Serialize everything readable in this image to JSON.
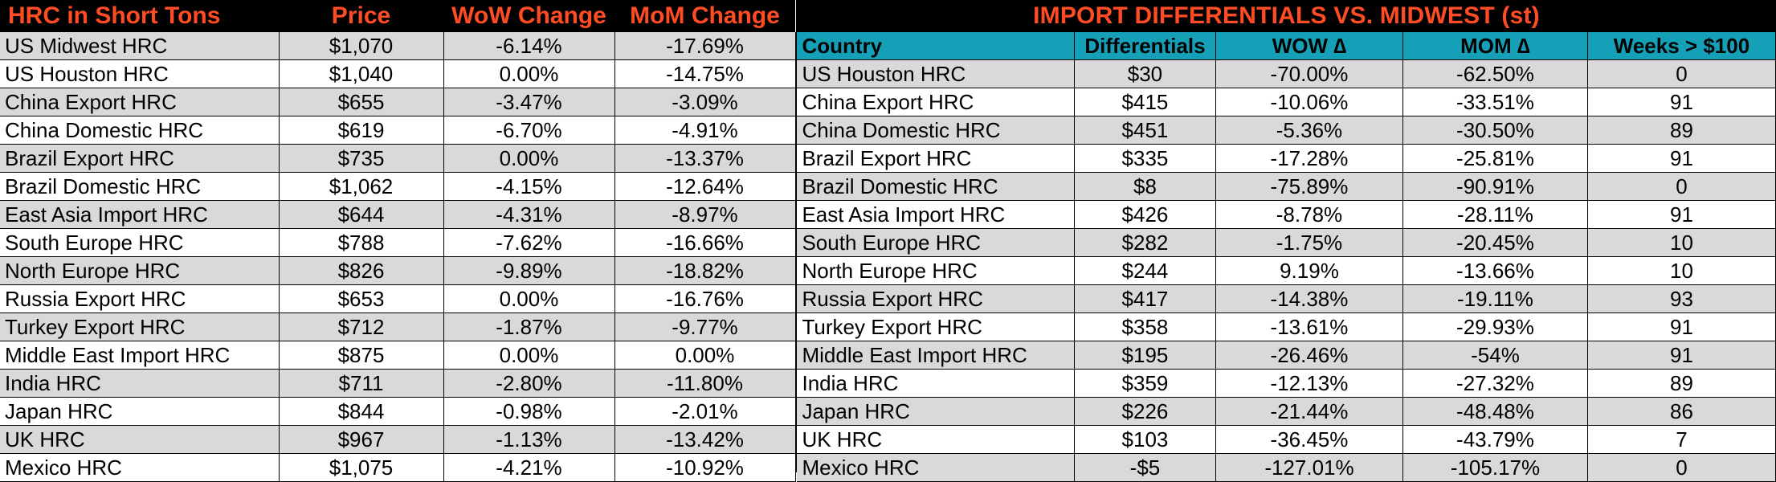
{
  "left_table": {
    "headers": [
      "HRC in Short Tons",
      "Price",
      "WoW Change",
      "MoM Change"
    ],
    "rows": [
      [
        "US Midwest HRC",
        "$1,070",
        "-6.14%",
        "-17.69%"
      ],
      [
        "US Houston HRC",
        "$1,040",
        "0.00%",
        "-14.75%"
      ],
      [
        "China Export HRC",
        "$655",
        "-3.47%",
        "-3.09%"
      ],
      [
        "China Domestic HRC",
        "$619",
        "-6.70%",
        "-4.91%"
      ],
      [
        "Brazil Export HRC",
        "$735",
        "0.00%",
        "-13.37%"
      ],
      [
        "Brazil Domestic HRC",
        "$1,062",
        "-4.15%",
        "-12.64%"
      ],
      [
        "East Asia Import HRC",
        "$644",
        "-4.31%",
        "-8.97%"
      ],
      [
        "South Europe HRC",
        "$788",
        "-7.62%",
        "-16.66%"
      ],
      [
        "North Europe HRC",
        "$826",
        "-9.89%",
        "-18.82%"
      ],
      [
        "Russia Export HRC",
        "$653",
        "0.00%",
        "-16.76%"
      ],
      [
        "Turkey Export HRC",
        "$712",
        "-1.87%",
        "-9.77%"
      ],
      [
        "Middle East Import HRC",
        "$875",
        "0.00%",
        "0.00%"
      ],
      [
        "India HRC",
        "$711",
        "-2.80%",
        "-11.80%"
      ],
      [
        "Japan HRC",
        "$844",
        "-0.98%",
        "-2.01%"
      ],
      [
        "UK HRC",
        "$967",
        "-1.13%",
        "-13.42%"
      ],
      [
        "Mexico HRC",
        "$1,075",
        "-4.21%",
        "-10.92%"
      ]
    ]
  },
  "right_table": {
    "title": "IMPORT DIFFERENTIALS VS. MIDWEST (st)",
    "headers": [
      "Country",
      "Differentials",
      "WOW ∆",
      "MOM ∆",
      "Weeks > $100"
    ],
    "rows": [
      [
        "US Houston HRC",
        "$30",
        "-70.00%",
        "-62.50%",
        "0"
      ],
      [
        "China Export HRC",
        "$415",
        "-10.06%",
        "-33.51%",
        "91"
      ],
      [
        "China Domestic HRC",
        "$451",
        "-5.36%",
        "-30.50%",
        "89"
      ],
      [
        "Brazil Export HRC",
        "$335",
        "-17.28%",
        "-25.81%",
        "91"
      ],
      [
        "Brazil Domestic HRC",
        "$8",
        "-75.89%",
        "-90.91%",
        "0"
      ],
      [
        "East Asia Import HRC",
        "$426",
        "-8.78%",
        "-28.11%",
        "91"
      ],
      [
        "South Europe HRC",
        "$282",
        "-1.75%",
        "-20.45%",
        "10"
      ],
      [
        "North Europe HRC",
        "$244",
        "9.19%",
        "-13.66%",
        "10"
      ],
      [
        "Russia Export HRC",
        "$417",
        "-14.38%",
        "-19.11%",
        "93"
      ],
      [
        "Turkey Export HRC",
        "$358",
        "-13.61%",
        "-29.93%",
        "91"
      ],
      [
        "Middle East Import HRC",
        "$195",
        "-26.46%",
        "-54%",
        "91"
      ],
      [
        "India HRC",
        "$359",
        "-12.13%",
        "-27.32%",
        "89"
      ],
      [
        "Japan HRC",
        "$226",
        "-21.44%",
        "-48.48%",
        "86"
      ],
      [
        "UK HRC",
        "$103",
        "-36.45%",
        "-43.79%",
        "7"
      ],
      [
        "Mexico HRC",
        "-$5",
        "-127.01%",
        "-105.17%",
        "0"
      ]
    ]
  },
  "colors": {
    "header_bg": "#000000",
    "header_text": "#ff4c24",
    "subheader_bg": "#16a0b8",
    "shaded_row": "#d9d9d9"
  }
}
